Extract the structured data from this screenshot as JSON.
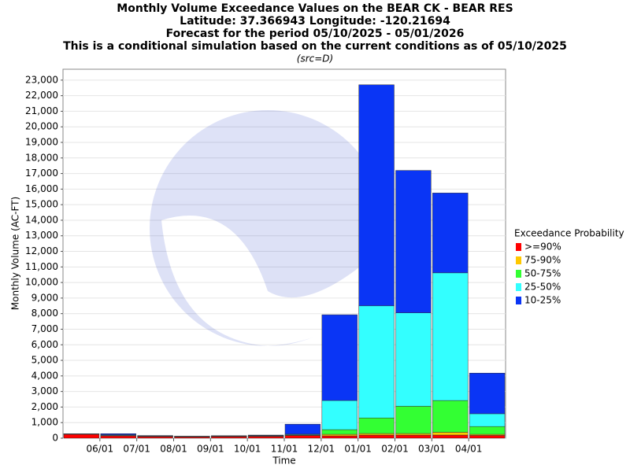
{
  "chart_data": {
    "type": "stacked-bar",
    "title": [
      "Monthly Volume Exceedance Values on the BEAR CK - BEAR RES",
      "Latitude: 37.366943 Longitude: -120.21694",
      "Forecast for the period 05/10/2025 - 05/01/2026",
      "This is a conditional simulation based on the current conditions as of 05/10/2025"
    ],
    "subtitle": "(src=D)",
    "x_label": "Time",
    "y_label": "Monthly Volume (AC-FT)",
    "legend_title": "Exceedance Probability",
    "categories": [
      null,
      "06/01",
      "07/01",
      "08/01",
      "09/01",
      "10/01",
      "11/01",
      "12/01",
      "01/01",
      "02/01",
      "03/01",
      "04/01"
    ],
    "series": [
      {
        "name": ">=90%",
        "color": "#ff0000",
        "values": [
          250,
          150,
          100,
          80,
          100,
          110,
          170,
          150,
          200,
          200,
          200,
          180
        ]
      },
      {
        "name": "75-90%",
        "color": "#ffc800",
        "values": [
          10,
          10,
          10,
          10,
          10,
          10,
          30,
          100,
          100,
          100,
          180,
          70
        ]
      },
      {
        "name": "50-75%",
        "color": "#33ff33",
        "values": [
          10,
          20,
          10,
          10,
          10,
          20,
          20,
          300,
          1000,
          1750,
          2040,
          500
        ]
      },
      {
        "name": "25-50%",
        "color": "#33ffff",
        "values": [
          5,
          40,
          20,
          10,
          20,
          30,
          40,
          1870,
          7200,
          6000,
          8200,
          820
        ]
      },
      {
        "name": "10-25%",
        "color": "#0a35f5",
        "values": [
          5,
          70,
          30,
          20,
          20,
          30,
          640,
          5510,
          14200,
          9150,
          5130,
          2610
        ]
      }
    ],
    "ylim": [
      0,
      23700
    ],
    "yticks": [
      0,
      {
        "value": 1000,
        "label": "1,000"
      },
      {
        "value": 2000,
        "label": "2,000"
      },
      {
        "value": 3000,
        "label": "3,000"
      },
      {
        "value": 4000,
        "label": "4,000"
      },
      {
        "value": 5000,
        "label": "5,000"
      },
      {
        "value": 6000,
        "label": "6,000"
      },
      {
        "value": 7000,
        "label": "7,000"
      },
      {
        "value": 8000,
        "label": "8,000"
      },
      {
        "value": 9000,
        "label": "9,000"
      },
      {
        "value": 10000,
        "label": "10,000"
      },
      {
        "value": 11000,
        "label": "11,000"
      },
      {
        "value": 12000,
        "label": "12,000"
      },
      {
        "value": 13000,
        "label": "13,000"
      },
      {
        "value": 14000,
        "label": "14,000"
      },
      {
        "value": 15000,
        "label": "15,000"
      },
      {
        "value": 16000,
        "label": "16,000"
      },
      {
        "value": 17000,
        "label": "17,000"
      },
      {
        "value": 18000,
        "label": "18,000"
      },
      {
        "value": 19000,
        "label": "19,000"
      },
      {
        "value": 20000,
        "label": "20,000"
      },
      {
        "value": 21000,
        "label": "21,000"
      },
      {
        "value": 22000,
        "label": "22,000"
      },
      {
        "value": 23000,
        "label": "23,000"
      }
    ],
    "grid": true
  }
}
